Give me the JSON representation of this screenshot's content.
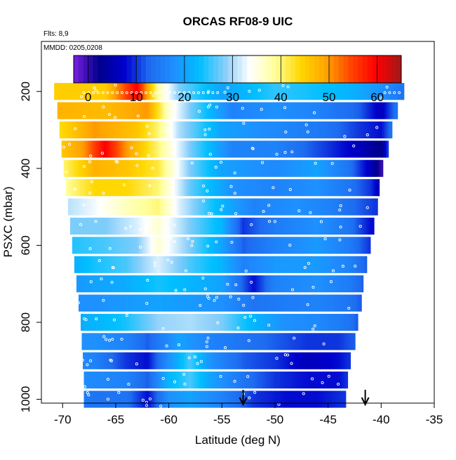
{
  "title": "ORCAS RF08-9 UIC",
  "note_flights": "Flts: 8,9",
  "note_dates": "MMDD: 0205,0208",
  "colors": {
    "scale": [
      "#7a1fe0",
      "#00008b",
      "#0000cd",
      "#1e6cf0",
      "#1e90ff",
      "#00bfff",
      "#87cefa",
      "#ffffff",
      "#ffff99",
      "#ffd700",
      "#ffa500",
      "#ff4500",
      "#ff0000",
      "#a01818"
    ],
    "background": "#ffffff",
    "marker": "#ffffff",
    "arrow": "#000000"
  },
  "chart_data": {
    "type": "heatmap",
    "title": "ORCAS RF08-9 UIC",
    "xlabel": "Latitude (deg N)",
    "ylabel": "PSXC (mbar)",
    "xlim": [
      -72,
      -35
    ],
    "ylim": [
      1010,
      70
    ],
    "x_ticks": [
      "-70",
      "-65",
      "-60",
      "-55",
      "-50",
      "-45",
      "-40",
      "-35"
    ],
    "x_tick_values": [
      -70,
      -65,
      -60,
      -55,
      -50,
      -45,
      -40,
      -35
    ],
    "y_ticks": [
      "200",
      "400",
      "600",
      "800",
      "1000"
    ],
    "y_tick_values": [
      200,
      400,
      600,
      800,
      1000
    ],
    "colorbar": {
      "range": [
        -3,
        65
      ],
      "ticks": [
        "0",
        "10",
        "20",
        "30",
        "40",
        "50",
        "60"
      ],
      "tick_values": [
        0,
        10,
        20,
        30,
        40,
        50,
        60
      ]
    },
    "arrows_lat": [
      -53,
      -41.5
    ],
    "grid": false,
    "legend": "colorbar top",
    "bands": [
      {
        "p": 200,
        "lat_start": -70.8,
        "lat_end": -38.0,
        "profile": [
          [
            -71,
            45
          ],
          [
            -66,
            45
          ],
          [
            -63,
            60
          ],
          [
            -61,
            38
          ],
          [
            -59,
            28
          ],
          [
            -55,
            20
          ],
          [
            -50,
            25
          ],
          [
            -47,
            24
          ],
          [
            -43,
            22
          ],
          [
            -40,
            18
          ],
          [
            -38,
            14
          ]
        ]
      },
      {
        "p": 250,
        "lat_start": -70.5,
        "lat_end": -38.6,
        "profile": [
          [
            -71,
            48
          ],
          [
            -66,
            47
          ],
          [
            -62,
            50
          ],
          [
            -60,
            36
          ],
          [
            -58,
            28
          ],
          [
            -54,
            16
          ],
          [
            -50,
            18
          ],
          [
            -46,
            16
          ],
          [
            -42,
            12
          ],
          [
            -40,
            6
          ],
          [
            -38.6,
            14
          ]
        ]
      },
      {
        "p": 300,
        "lat_start": -70.3,
        "lat_end": -39.0,
        "profile": [
          [
            -71,
            42
          ],
          [
            -67,
            50
          ],
          [
            -63,
            46
          ],
          [
            -61,
            40
          ],
          [
            -59,
            30
          ],
          [
            -55,
            20
          ],
          [
            -50,
            17
          ],
          [
            -45,
            14
          ],
          [
            -42,
            10
          ],
          [
            -40,
            8
          ],
          [
            -39,
            14
          ]
        ]
      },
      {
        "p": 350,
        "lat_start": -70.1,
        "lat_end": -39.4,
        "profile": [
          [
            -71,
            44
          ],
          [
            -68,
            50
          ],
          [
            -66,
            60
          ],
          [
            -64,
            50
          ],
          [
            -61,
            40
          ],
          [
            -58,
            28
          ],
          [
            -54,
            16
          ],
          [
            -50,
            16
          ],
          [
            -45,
            10
          ],
          [
            -42,
            6
          ],
          [
            -40,
            2
          ],
          [
            -39.4,
            10
          ]
        ]
      },
      {
        "p": 400,
        "lat_start": -69.9,
        "lat_end": -39.9,
        "profile": [
          [
            -70,
            40
          ],
          [
            -67,
            48
          ],
          [
            -64,
            46
          ],
          [
            -61,
            42
          ],
          [
            -58,
            28
          ],
          [
            -55,
            20
          ],
          [
            -50,
            17
          ],
          [
            -46,
            20
          ],
          [
            -43,
            14
          ],
          [
            -41,
            6
          ],
          [
            -40,
            0
          ]
        ]
      },
      {
        "p": 450,
        "lat_start": -69.7,
        "lat_end": -40.2,
        "profile": [
          [
            -70,
            38
          ],
          [
            -67,
            44
          ],
          [
            -64,
            44
          ],
          [
            -61,
            40
          ],
          [
            -58,
            27
          ],
          [
            -54,
            18
          ],
          [
            -50,
            16
          ],
          [
            -46,
            18
          ],
          [
            -43,
            14
          ],
          [
            -41,
            10
          ],
          [
            -40.2,
            6
          ]
        ]
      },
      {
        "p": 500,
        "lat_start": -69.5,
        "lat_end": -40.5,
        "profile": [
          [
            -70,
            30
          ],
          [
            -67,
            33
          ],
          [
            -64,
            37
          ],
          [
            -61,
            40
          ],
          [
            -59,
            32
          ],
          [
            -56,
            24
          ],
          [
            -52,
            16
          ],
          [
            -48,
            18
          ],
          [
            -45,
            16
          ],
          [
            -42,
            12
          ],
          [
            -40.5,
            10
          ]
        ]
      },
      {
        "p": 550,
        "lat_start": -69.3,
        "lat_end": -40.8,
        "profile": [
          [
            -70,
            28
          ],
          [
            -66,
            28
          ],
          [
            -63,
            32
          ],
          [
            -61,
            36
          ],
          [
            -58,
            28
          ],
          [
            -55,
            22
          ],
          [
            -53,
            10
          ],
          [
            -50,
            15
          ],
          [
            -46,
            18
          ],
          [
            -43,
            14
          ],
          [
            -41,
            8
          ]
        ]
      },
      {
        "p": 600,
        "lat_start": -69.1,
        "lat_end": -41.1,
        "profile": [
          [
            -70,
            24
          ],
          [
            -66,
            26
          ],
          [
            -63,
            28
          ],
          [
            -61,
            36
          ],
          [
            -58,
            28
          ],
          [
            -55,
            20
          ],
          [
            -53,
            12
          ],
          [
            -50,
            16
          ],
          [
            -46,
            19
          ],
          [
            -43,
            15
          ],
          [
            -41.1,
            10
          ]
        ]
      },
      {
        "p": 650,
        "lat_start": -68.9,
        "lat_end": -41.4,
        "profile": [
          [
            -70,
            20
          ],
          [
            -67,
            24
          ],
          [
            -64,
            26
          ],
          [
            -61,
            32
          ],
          [
            -58,
            26
          ],
          [
            -55,
            22
          ],
          [
            -53,
            16
          ],
          [
            -50,
            19
          ],
          [
            -46,
            19
          ],
          [
            -43,
            16
          ],
          [
            -41.4,
            12
          ]
        ]
      },
      {
        "p": 700,
        "lat_start": -68.7,
        "lat_end": -41.7,
        "profile": [
          [
            -70,
            18
          ],
          [
            -67,
            20
          ],
          [
            -64,
            21
          ],
          [
            -61,
            24
          ],
          [
            -58,
            22
          ],
          [
            -55,
            20
          ],
          [
            -52,
            8
          ],
          [
            -50,
            16
          ],
          [
            -46,
            18
          ],
          [
            -43,
            15
          ],
          [
            -41.7,
            12
          ]
        ]
      },
      {
        "p": 750,
        "lat_start": -68.5,
        "lat_end": -42.0,
        "profile": [
          [
            -70,
            18
          ],
          [
            -67,
            18
          ],
          [
            -64,
            19
          ],
          [
            -61,
            20
          ],
          [
            -58,
            19
          ],
          [
            -55,
            18
          ],
          [
            -52,
            14
          ],
          [
            -49,
            15
          ],
          [
            -46,
            16
          ],
          [
            -43,
            14
          ],
          [
            -42,
            12
          ]
        ]
      },
      {
        "p": 800,
        "lat_start": -68.3,
        "lat_end": -42.3,
        "profile": [
          [
            -70,
            20
          ],
          [
            -67,
            22
          ],
          [
            -64,
            24
          ],
          [
            -61,
            29
          ],
          [
            -58,
            30
          ],
          [
            -55,
            28
          ],
          [
            -52,
            22
          ],
          [
            -49,
            18
          ],
          [
            -46,
            17
          ],
          [
            -43,
            14
          ],
          [
            -42.3,
            12
          ]
        ]
      },
      {
        "p": 850,
        "lat_start": -68.2,
        "lat_end": -42.6,
        "profile": [
          [
            -70,
            18
          ],
          [
            -67,
            18
          ],
          [
            -64,
            16
          ],
          [
            -62,
            12
          ],
          [
            -59,
            20
          ],
          [
            -56,
            16
          ],
          [
            -53,
            14
          ],
          [
            -50,
            12
          ],
          [
            -47,
            10
          ],
          [
            -44,
            10
          ],
          [
            -42.6,
            12
          ]
        ]
      },
      {
        "p": 900,
        "lat_start": -68.1,
        "lat_end": -42.9,
        "profile": [
          [
            -70,
            18
          ],
          [
            -67,
            16
          ],
          [
            -64,
            10
          ],
          [
            -62,
            8
          ],
          [
            -60,
            18
          ],
          [
            -58,
            26
          ],
          [
            -56,
            18
          ],
          [
            -53,
            12
          ],
          [
            -50,
            10
          ],
          [
            -47,
            6
          ],
          [
            -44,
            8
          ],
          [
            -42.9,
            10
          ]
        ]
      },
      {
        "p": 950,
        "lat_start": -68.0,
        "lat_end": -43.2,
        "profile": [
          [
            -70,
            18
          ],
          [
            -67,
            17
          ],
          [
            -64,
            16
          ],
          [
            -62,
            12
          ],
          [
            -60,
            22
          ],
          [
            -58,
            26
          ],
          [
            -56,
            20
          ],
          [
            -53,
            14
          ],
          [
            -50,
            10
          ],
          [
            -47,
            8
          ],
          [
            -44,
            8
          ],
          [
            -43.2,
            10
          ]
        ]
      },
      {
        "p": 1000,
        "lat_start": -68.0,
        "lat_end": -43.4,
        "profile": [
          [
            -70,
            16
          ],
          [
            -67,
            14
          ],
          [
            -64,
            14
          ],
          [
            -62,
            8
          ],
          [
            -60,
            18
          ],
          [
            -58,
            20
          ],
          [
            -55,
            16
          ],
          [
            -52,
            10
          ],
          [
            -49,
            8
          ],
          [
            -46,
            8
          ],
          [
            -43.4,
            10
          ]
        ]
      }
    ]
  }
}
